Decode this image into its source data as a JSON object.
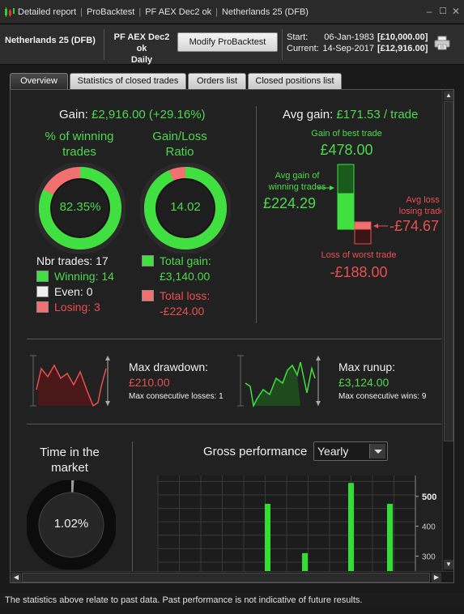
{
  "window": {
    "title_parts": [
      "Detailed report",
      "ProBacktest",
      "PF AEX Dec2 ok",
      "Netherlands 25 (DFB)"
    ],
    "min_icon": "minimize-icon",
    "max_icon": "maximize-icon",
    "close_icon": "close-icon"
  },
  "header": {
    "instrument": "Netherlands 25 (DFB)",
    "backtest_name": "PF AEX Dec2 ok",
    "period": "Daily",
    "modify_label": "Modify ProBacktest",
    "start_label": "Start:",
    "start_date": "06-Jan-1983",
    "start_value": "[£10,000.00]",
    "current_label": "Current:",
    "current_date": "14-Sep-2017",
    "current_value": "[£12,916.00]"
  },
  "tabs": [
    "Overview",
    "Statistics of closed trades",
    "Orders list",
    "Closed positions list"
  ],
  "overview": {
    "gain_label": "Gain:",
    "gain_value": "£2,916.00 (+29.16%)",
    "pct_winning_title_1": "% of winning",
    "pct_winning_title_2": "trades",
    "pct_winning_value": "82.35%",
    "pct_winning_fraction": 0.8235,
    "ratio_title_1": "Gain/Loss",
    "ratio_title_2": "Ratio",
    "ratio_value": "14.02",
    "ratio_fraction": 0.933,
    "nbr_trades": "Nbr trades: 17",
    "winning": "Winning: 14",
    "even": "Even: 0",
    "losing": "Losing: 3",
    "total_gain_label": "Total gain:",
    "total_gain_value": "£3,140.00",
    "total_loss_label": "Total loss:",
    "total_loss_value": "-£224.00",
    "avg_gain_label": "Avg gain:",
    "avg_gain_value": "£171.53 / trade",
    "best_trade_label": "Gain of best trade",
    "best_trade_value": "£478.00",
    "avg_gain_winning_label_1": "Avg gain of",
    "avg_gain_winning_label_2": "winning trades",
    "avg_gain_winning_value": "£224.29",
    "avg_loss_losing_label_1": "Avg loss of",
    "avg_loss_losing_label_2": "losing trades",
    "avg_loss_losing_value": "-£74.67",
    "worst_trade_label": "Loss of worst trade",
    "worst_trade_value": "-£188.00",
    "max_drawdown_label": "Max drawdown:",
    "max_drawdown_value": "£210.00",
    "max_consec_losses": "Max consecutive losses: 1",
    "max_runup_label": "Max runup:",
    "max_runup_value": "£3,124.00",
    "max_consec_wins": "Max consecutive wins: 9",
    "time_market_title_1": "Time in the",
    "time_market_title_2": "market",
    "time_market_value": "1.02%",
    "time_market_fraction": 0.0102,
    "gross_perf_label": "Gross performance",
    "gross_perf_select": "Yearly"
  },
  "colors": {
    "green": "#4ed84e",
    "red": "#e85050",
    "bar_green": "#33dd33"
  },
  "chart_data": {
    "type": "bar",
    "title": "Gross performance",
    "yticks": [
      300,
      400,
      500
    ],
    "ylim": [
      250,
      570
    ],
    "values": [
      475,
      310,
      545,
      475
    ]
  },
  "footer": {
    "disclaimer": "The statistics above relate to past data. Past performance is not indicative of future results."
  }
}
